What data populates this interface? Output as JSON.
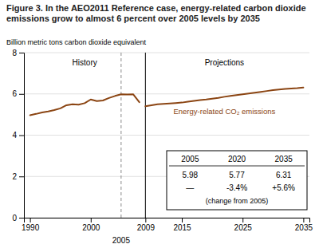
{
  "chart_data": {
    "type": "line",
    "title": "Figure 3. In the AEO2011 Reference case, energy-related carbon dioxide emissions grow to almost 6 percent over 2005 levels by 2035",
    "y_label": "Billion metric tons carbon dioxide equivalent",
    "series": [
      {
        "x": [
          1990,
          1991,
          1992,
          1993,
          1994,
          1995,
          1996,
          1997,
          1998,
          1999,
          2000,
          2001,
          2002,
          2003,
          2004,
          2005,
          2006,
          2007,
          2008
        ],
        "values": [
          4.97,
          5.03,
          5.1,
          5.15,
          5.22,
          5.3,
          5.45,
          5.5,
          5.48,
          5.55,
          5.73,
          5.65,
          5.68,
          5.8,
          5.9,
          5.98,
          5.97,
          5.98,
          5.6
        ],
        "color": "#8B4513"
      },
      {
        "x": [
          2009,
          2010,
          2011,
          2012,
          2013,
          2014,
          2015,
          2016,
          2017,
          2018,
          2019,
          2020,
          2021,
          2022,
          2023,
          2024,
          2025,
          2026,
          2027,
          2028,
          2029,
          2030,
          2031,
          2032,
          2033,
          2034,
          2035
        ],
        "values": [
          5.4,
          5.45,
          5.5,
          5.52,
          5.54,
          5.56,
          5.58,
          5.62,
          5.66,
          5.7,
          5.73,
          5.77,
          5.81,
          5.86,
          5.9,
          5.94,
          5.98,
          6.02,
          6.06,
          6.1,
          6.14,
          6.18,
          6.21,
          6.24,
          6.26,
          6.28,
          6.31
        ],
        "color": "#8B4513"
      }
    ],
    "xlim": [
      1989,
      2036
    ],
    "ylim": [
      0,
      8
    ],
    "xticks": [
      1990,
      2000,
      2009,
      2015,
      2025,
      2035
    ],
    "yticks": [
      0,
      2,
      4,
      6,
      8
    ],
    "grid": true,
    "vlines": [
      {
        "x": 2005,
        "line_style": "dashed",
        "label": "2005"
      },
      {
        "x": 2009,
        "line_style": "solid"
      }
    ],
    "annotations": [
      "History",
      "Projections",
      "Energy-related CO₂ emissions"
    ],
    "table": {
      "columns": [
        2005,
        2020,
        2035
      ],
      "values": [
        5.98,
        5.77,
        6.31
      ],
      "changes": [
        null,
        -3.4,
        5.6
      ],
      "change_labels": [
        "—",
        "-3.4%",
        "+5.6%"
      ],
      "note": "(change from 2005)"
    }
  }
}
